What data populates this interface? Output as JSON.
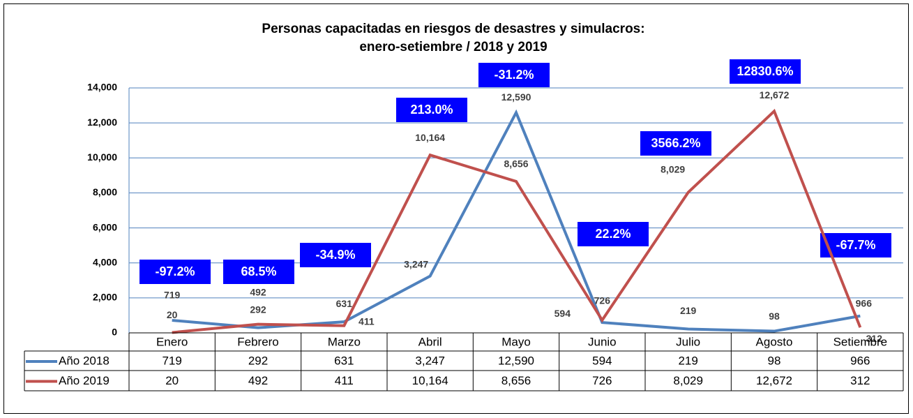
{
  "chart_data": {
    "type": "line",
    "title": [
      "Personas capacitadas en riesgos de desastres y simulacros:",
      "enero-setiembre / 2018 y 2019"
    ],
    "categories": [
      "Enero",
      "Febrero",
      "Marzo",
      "Abril",
      "Mayo",
      "Junio",
      "Julio",
      "Agosto",
      "Setiembre"
    ],
    "series": [
      {
        "name": "Año 2018",
        "color": "#4f81bd",
        "values": [
          719,
          292,
          631,
          3247,
          12590,
          594,
          219,
          98,
          966
        ],
        "value_labels": [
          "719",
          "292",
          "631",
          "3,247",
          "12,590",
          "594",
          "219",
          "98",
          "966"
        ]
      },
      {
        "name": "Año 2019",
        "color": "#c0504d",
        "values": [
          20,
          492,
          411,
          10164,
          8656,
          726,
          8029,
          12672,
          312
        ],
        "value_labels": [
          "20",
          "492",
          "411",
          "10,164",
          "8,656",
          "726",
          "8,029",
          "12,672",
          "312"
        ]
      }
    ],
    "annotations": [
      "-97.2%",
      "68.5%",
      "-34.9%",
      "213.0%",
      "-31.2%",
      "22.2%",
      "3566.2%",
      "12830.6%",
      "-67.7%"
    ],
    "annotation_color": "#0000ff",
    "ylim": [
      0,
      14000
    ],
    "yticks": [
      0,
      {
        "value": 2000,
        "label": "2,000"
      },
      {
        "value": 4000,
        "label": "4,000"
      },
      {
        "value": 6000,
        "label": "6,000"
      },
      {
        "value": 8000,
        "label": "8,000"
      },
      {
        "value": 10000,
        "label": "10,000"
      },
      {
        "value": 12000,
        "label": "12,000"
      },
      {
        "value": 14000,
        "label": "14,000"
      }
    ],
    "grid": true,
    "data_table": true
  }
}
